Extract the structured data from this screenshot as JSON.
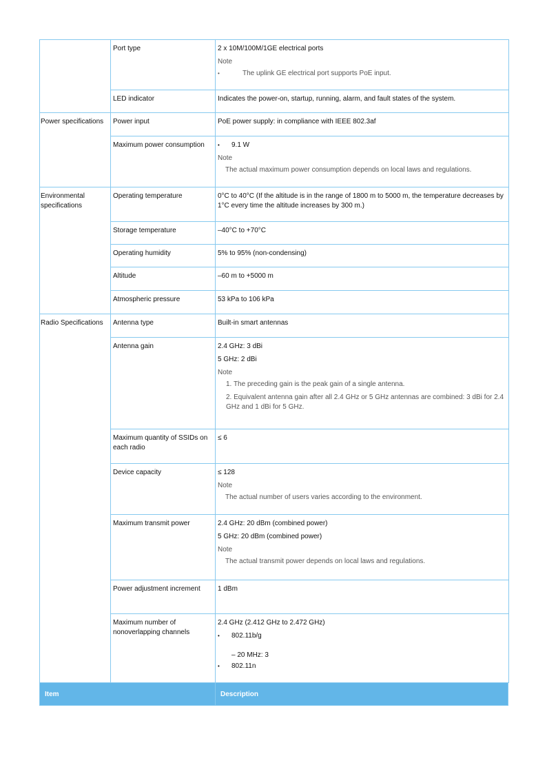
{
  "header": {
    "item": "Item",
    "description": "Description"
  },
  "port_type": {
    "label": "Port type",
    "value": "2 x 10M/100M/1GE electrical ports",
    "note": "Note",
    "bullet": "The uplink GE electrical port supports PoE input."
  },
  "led": {
    "label": "LED indicator",
    "value": "Indicates the power-on, startup, running, alarm, and fault states of the system."
  },
  "power": {
    "group": "Power specifications",
    "input": {
      "label": "Power input",
      "value": "PoE power supply: in compliance with IEEE 802.3af"
    },
    "max": {
      "label": "Maximum power consumption",
      "bullet": "9.1 W",
      "note": "Note",
      "note_text": "The actual maximum power consumption depends on local laws and regulations."
    }
  },
  "env": {
    "group": "Environmental specifications",
    "op_temp": {
      "label": "Operating temperature",
      "value": "0°C to 40°C (If the altitude is in the range of 1800 m to 5000 m, the temperature decreases by 1°C every time the altitude increases by 300 m.)"
    },
    "storage": {
      "label": "Storage temperature",
      "value": "–40°C to +70°C"
    },
    "humidity": {
      "label": "Operating humidity",
      "value": "5% to 95% (non-condensing)"
    },
    "altitude": {
      "label": "Altitude",
      "value": "–60 m to +5000 m"
    },
    "pressure": {
      "label": "Atmospheric pressure",
      "value": "53 kPa to 106 kPa"
    }
  },
  "radio": {
    "group": "Radio Specifications",
    "antenna_type": {
      "label": "Antenna type",
      "value": "Built-in smart antennas"
    },
    "gain": {
      "label": "Antenna gain",
      "v1": "2.4 GHz: 3 dBi",
      "v2": "5 GHz: 2 dBi",
      "note": "Note",
      "n1": "1.  The preceding gain is the peak gain of a single antenna.",
      "n2": "2.  Equivalent antenna gain after all 2.4 GHz or 5 GHz antennas are combined: 3 dBi for 2.4 GHz and 1 dBi for 5 GHz."
    },
    "ssids": {
      "label": "Maximum quantity of SSIDs on each radio",
      "value": "≤ 6"
    },
    "capacity": {
      "label": "Device capacity",
      "value": "≤ 128",
      "note": "Note",
      "note_text": "The actual number of users varies according to the environment."
    },
    "tx": {
      "label": "Maximum transmit power",
      "v1": "2.4 GHz: 20 dBm (combined power)",
      "v2": "5 GHz: 20 dBm (combined power)",
      "note": "Note",
      "note_text": "The actual transmit power depends on local laws and regulations."
    },
    "increment": {
      "label": "Power adjustment increment",
      "value": "1 dBm"
    },
    "channels": {
      "label": "Maximum number of nonoverlapping channels",
      "v1": "2.4 GHz (2.412 GHz to 2.472 GHz)",
      "b1": "802.11b/g",
      "s1": "– 20 MHz: 3",
      "b2": "802.11n"
    }
  }
}
